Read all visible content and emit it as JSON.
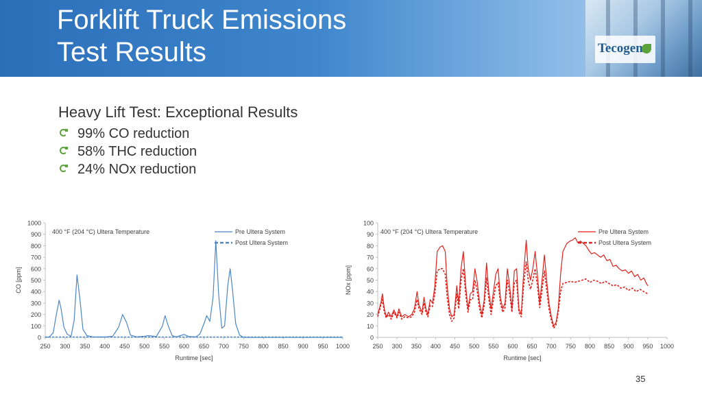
{
  "slide": {
    "title_line1": "Forklift Truck Emissions",
    "title_line2": "Test Results",
    "logo_text": "Tecogen",
    "subtitle": "Heavy Lift Test: Exceptional Results",
    "bullets": [
      "99% CO reduction",
      "58% THC reduction",
      "24% NOx reduction"
    ],
    "page_number": "35",
    "colors": {
      "header_blue": "#2b6fb9",
      "co_line": "#4a86c5",
      "nox_line": "#e0201a",
      "bullet_green": "#5aa33a"
    }
  },
  "chart_data": [
    {
      "type": "line",
      "annotation": "400 °F (204 °C) Ultera Temperature",
      "xlabel": "Runtime [sec]",
      "ylabel": "CO [ppm]",
      "xlim": [
        250,
        1000
      ],
      "ylim": [
        0,
        1000
      ],
      "x_ticks": [
        "250",
        "300",
        "350",
        "400",
        "450",
        "500",
        "550",
        "600",
        "650",
        "700",
        "750",
        "800",
        "850",
        "900",
        "950",
        "1000"
      ],
      "y_ticks": [
        "0",
        "100",
        "200",
        "300",
        "400",
        "500",
        "600",
        "700",
        "800",
        "900",
        "1000"
      ],
      "legend": [
        "Pre Ultera System",
        "Post Ultera System"
      ],
      "series": [
        {
          "name": "Pre Ultera System",
          "color": "#4a86c5",
          "style": "solid",
          "points": [
            [
              250,
              0
            ],
            [
              260,
              3
            ],
            [
              270,
              40
            ],
            [
              278,
              200
            ],
            [
              285,
              325
            ],
            [
              290,
              250
            ],
            [
              297,
              90
            ],
            [
              305,
              30
            ],
            [
              315,
              8
            ],
            [
              323,
              150
            ],
            [
              330,
              545
            ],
            [
              337,
              350
            ],
            [
              345,
              70
            ],
            [
              355,
              15
            ],
            [
              370,
              5
            ],
            [
              400,
              3
            ],
            [
              420,
              10
            ],
            [
              435,
              90
            ],
            [
              445,
              200
            ],
            [
              455,
              130
            ],
            [
              465,
              20
            ],
            [
              480,
              5
            ],
            [
              500,
              10
            ],
            [
              510,
              15
            ],
            [
              530,
              8
            ],
            [
              545,
              95
            ],
            [
              552,
              190
            ],
            [
              560,
              100
            ],
            [
              570,
              15
            ],
            [
              580,
              5
            ],
            [
              590,
              15
            ],
            [
              600,
              25
            ],
            [
              612,
              8
            ],
            [
              630,
              5
            ],
            [
              640,
              30
            ],
            [
              650,
              120
            ],
            [
              657,
              190
            ],
            [
              665,
              140
            ],
            [
              673,
              350
            ],
            [
              680,
              845
            ],
            [
              687,
              380
            ],
            [
              695,
              80
            ],
            [
              702,
              100
            ],
            [
              710,
              450
            ],
            [
              716,
              600
            ],
            [
              722,
              420
            ],
            [
              730,
              120
            ],
            [
              740,
              20
            ],
            [
              750,
              0
            ],
            [
              800,
              0
            ],
            [
              1000,
              0
            ]
          ]
        },
        {
          "name": "Post Ultera System",
          "color": "#4a86c5",
          "style": "dashed",
          "points": [
            [
              250,
              3
            ],
            [
              1000,
              3
            ]
          ]
        }
      ]
    },
    {
      "type": "line",
      "annotation": "400 °F (204 °C) Ultera Temperature",
      "xlabel": "Runtime [sec]",
      "ylabel": "NOx [ppm]",
      "xlim": [
        250,
        1000
      ],
      "ylim": [
        0,
        100
      ],
      "x_ticks": [
        "250",
        "300",
        "350",
        "400",
        "450",
        "500",
        "550",
        "600",
        "650",
        "700",
        "750",
        "800",
        "850",
        "900",
        "950",
        "1000"
      ],
      "y_ticks": [
        "0",
        "10",
        "20",
        "30",
        "40",
        "50",
        "60",
        "70",
        "80",
        "90",
        "100"
      ],
      "legend": [
        "Pre Ultera System",
        "Post Ultera System"
      ],
      "series": [
        {
          "name": "Pre Ultera System",
          "color": "#e0201a",
          "style": "solid",
          "points": [
            [
              250,
              20
            ],
            [
              258,
              30
            ],
            [
              262,
              38
            ],
            [
              267,
              25
            ],
            [
              272,
              18
            ],
            [
              278,
              22
            ],
            [
              285,
              18
            ],
            [
              292,
              24
            ],
            [
              300,
              18
            ],
            [
              305,
              25
            ],
            [
              312,
              18
            ],
            [
              320,
              20
            ],
            [
              330,
              18
            ],
            [
              338,
              20
            ],
            [
              345,
              25
            ],
            [
              352,
              40
            ],
            [
              357,
              28
            ],
            [
              365,
              22
            ],
            [
              370,
              35
            ],
            [
              375,
              25
            ],
            [
              380,
              20
            ],
            [
              386,
              33
            ],
            [
              392,
              30
            ],
            [
              398,
              45
            ],
            [
              404,
              75
            ],
            [
              412,
              79
            ],
            [
              418,
              80
            ],
            [
              425,
              75
            ],
            [
              430,
              45
            ],
            [
              436,
              25
            ],
            [
              442,
              18
            ],
            [
              448,
              20
            ],
            [
              455,
              45
            ],
            [
              460,
              30
            ],
            [
              466,
              60
            ],
            [
              472,
              75
            ],
            [
              478,
              45
            ],
            [
              484,
              25
            ],
            [
              490,
              38
            ],
            [
              496,
              40
            ],
            [
              502,
              60
            ],
            [
              508,
              48
            ],
            [
              514,
              30
            ],
            [
              520,
              20
            ],
            [
              526,
              33
            ],
            [
              532,
              65
            ],
            [
              538,
              40
            ],
            [
              544,
              25
            ],
            [
              550,
              40
            ],
            [
              556,
              55
            ],
            [
              562,
              60
            ],
            [
              568,
              35
            ],
            [
              574,
              25
            ],
            [
              580,
              30
            ],
            [
              586,
              60
            ],
            [
              592,
              45
            ],
            [
              598,
              25
            ],
            [
              604,
              58
            ],
            [
              610,
              60
            ],
            [
              616,
              25
            ],
            [
              622,
              20
            ],
            [
              628,
              55
            ],
            [
              635,
              85
            ],
            [
              640,
              60
            ],
            [
              646,
              50
            ],
            [
              652,
              60
            ],
            [
              658,
              75
            ],
            [
              664,
              55
            ],
            [
              670,
              30
            ],
            [
              676,
              50
            ],
            [
              682,
              72
            ],
            [
              688,
              50
            ],
            [
              694,
              30
            ],
            [
              700,
              18
            ],
            [
              706,
              10
            ],
            [
              712,
              13
            ],
            [
              718,
              25
            ],
            [
              724,
              55
            ],
            [
              730,
              75
            ],
            [
              740,
              82
            ],
            [
              748,
              84
            ],
            [
              755,
              85
            ],
            [
              762,
              87
            ],
            [
              768,
              83
            ],
            [
              776,
              84
            ],
            [
              783,
              82
            ],
            [
              790,
              80
            ],
            [
              797,
              76
            ],
            [
              804,
              73
            ],
            [
              812,
              74
            ],
            [
              820,
              72
            ],
            [
              828,
              70
            ],
            [
              836,
              72
            ],
            [
              844,
              67
            ],
            [
              852,
              68
            ],
            [
              860,
              62
            ],
            [
              868,
              63
            ],
            [
              876,
              60
            ],
            [
              884,
              58
            ],
            [
              892,
              59
            ],
            [
              900,
              56
            ],
            [
              908,
              58
            ],
            [
              916,
              53
            ],
            [
              924,
              55
            ],
            [
              932,
              50
            ],
            [
              940,
              52
            ],
            [
              945,
              48
            ],
            [
              950,
              45
            ]
          ]
        },
        {
          "name": "Post Ultera System",
          "color": "#e0201a",
          "style": "dashed",
          "points": [
            [
              250,
              18
            ],
            [
              258,
              28
            ],
            [
              262,
              33
            ],
            [
              267,
              22
            ],
            [
              272,
              17
            ],
            [
              278,
              20
            ],
            [
              285,
              16
            ],
            [
              292,
              22
            ],
            [
              300,
              17
            ],
            [
              305,
              22
            ],
            [
              312,
              16
            ],
            [
              320,
              18
            ],
            [
              330,
              17
            ],
            [
              338,
              18
            ],
            [
              345,
              22
            ],
            [
              352,
              33
            ],
            [
              357,
              25
            ],
            [
              365,
              20
            ],
            [
              370,
              30
            ],
            [
              375,
              22
            ],
            [
              380,
              18
            ],
            [
              386,
              28
            ],
            [
              392,
              27
            ],
            [
              398,
              38
            ],
            [
              404,
              58
            ],
            [
              412,
              60
            ],
            [
              418,
              60
            ],
            [
              425,
              55
            ],
            [
              430,
              35
            ],
            [
              436,
              20
            ],
            [
              442,
              14
            ],
            [
              448,
              17
            ],
            [
              455,
              38
            ],
            [
              460,
              25
            ],
            [
              466,
              50
            ],
            [
              472,
              60
            ],
            [
              478,
              38
            ],
            [
              484,
              22
            ],
            [
              490,
              33
            ],
            [
              496,
              33
            ],
            [
              502,
              50
            ],
            [
              508,
              40
            ],
            [
              514,
              25
            ],
            [
              520,
              17
            ],
            [
              526,
              28
            ],
            [
              532,
              52
            ],
            [
              538,
              34
            ],
            [
              544,
              20
            ],
            [
              550,
              33
            ],
            [
              556,
              45
            ],
            [
              562,
              48
            ],
            [
              568,
              30
            ],
            [
              574,
              22
            ],
            [
              580,
              26
            ],
            [
              586,
              50
            ],
            [
              592,
              38
            ],
            [
              598,
              22
            ],
            [
              604,
              48
            ],
            [
              610,
              50
            ],
            [
              616,
              22
            ],
            [
              622,
              18
            ],
            [
              628,
              45
            ],
            [
              635,
              66
            ],
            [
              640,
              50
            ],
            [
              646,
              42
            ],
            [
              652,
              50
            ],
            [
              658,
              60
            ],
            [
              664,
              45
            ],
            [
              670,
              26
            ],
            [
              676,
              42
            ],
            [
              682,
              58
            ],
            [
              688,
              42
            ],
            [
              694,
              25
            ],
            [
              700,
              15
            ],
            [
              706,
              8
            ],
            [
              712,
              11
            ],
            [
              718,
              22
            ],
            [
              724,
              40
            ],
            [
              730,
              47
            ],
            [
              740,
              48
            ],
            [
              750,
              49
            ],
            [
              760,
              48
            ],
            [
              770,
              49
            ],
            [
              780,
              50
            ],
            [
              790,
              51
            ],
            [
              800,
              48
            ],
            [
              810,
              50
            ],
            [
              820,
              49
            ],
            [
              830,
              47
            ],
            [
              840,
              49
            ],
            [
              850,
              47
            ],
            [
              860,
              45
            ],
            [
              870,
              46
            ],
            [
              880,
              43
            ],
            [
              890,
              44
            ],
            [
              900,
              41
            ],
            [
              910,
              43
            ],
            [
              920,
              40
            ],
            [
              930,
              42
            ],
            [
              940,
              40
            ],
            [
              950,
              38
            ]
          ]
        }
      ]
    }
  ]
}
